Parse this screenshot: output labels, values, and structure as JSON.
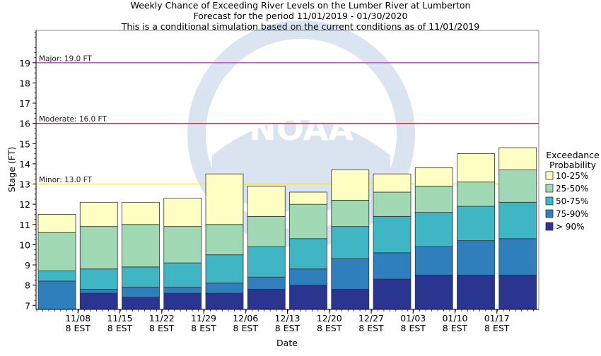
{
  "chart_data": {
    "type": "bar",
    "subtype": "stacked-range",
    "title": [
      "Weekly Chance of Exceeding River Levels on the Lumber River at Lumberton",
      "Forecast for the period 11/01/2019 - 01/30/2020",
      "This is a conditional simulation based on the current conditions as of 11/01/2019"
    ],
    "xlabel": "Date",
    "ylabel": "Stage (FT)",
    "ylim": [
      6.8,
      20.6
    ],
    "yticks": [
      7,
      8,
      9,
      10,
      11,
      12,
      13,
      14,
      15,
      16,
      17,
      18,
      19
    ],
    "grid": false,
    "legend_position": "right",
    "legend_title": [
      "Exceedance",
      "Probability"
    ],
    "weeks": [
      {
        "label": [
          "",
          ""
        ],
        "levels": [
          8.2,
          8.7,
          10.6,
          11.5
        ]
      },
      {
        "label": [
          "11/08",
          "8 EST"
        ],
        "levels": [
          7.6,
          7.8,
          8.8,
          10.9,
          12.1
        ]
      },
      {
        "label": [
          "11/15",
          "8 EST"
        ],
        "levels": [
          7.4,
          7.9,
          8.9,
          11.0,
          12.1
        ]
      },
      {
        "label": [
          "11/22",
          "8 EST"
        ],
        "levels": [
          7.6,
          7.9,
          9.1,
          10.9,
          12.3
        ]
      },
      {
        "label": [
          "11/29",
          "8 EST"
        ],
        "levels": [
          7.6,
          8.1,
          9.5,
          11.0,
          13.5
        ]
      },
      {
        "label": [
          "12/06",
          "8 EST"
        ],
        "levels": [
          7.8,
          8.4,
          9.9,
          11.4,
          12.9
        ]
      },
      {
        "label": [
          "12/13",
          "8 EST"
        ],
        "levels": [
          8.0,
          8.8,
          10.3,
          12.0,
          12.6
        ]
      },
      {
        "label": [
          "12/20",
          "8 EST"
        ],
        "levels": [
          7.8,
          9.3,
          10.9,
          12.2,
          13.7
        ]
      },
      {
        "label": [
          "12/27",
          "8 EST"
        ],
        "levels": [
          8.3,
          9.6,
          11.4,
          12.6,
          13.5
        ]
      },
      {
        "label": [
          "01/03",
          "8 EST"
        ],
        "levels": [
          8.5,
          9.9,
          11.6,
          12.9,
          13.8
        ]
      },
      {
        "label": [
          "01/10",
          "8 EST"
        ],
        "levels": [
          8.5,
          10.2,
          11.9,
          13.1,
          14.5
        ]
      },
      {
        "label": [
          "01/17",
          "8 EST"
        ],
        "levels": [
          8.5,
          10.3,
          12.1,
          13.7,
          14.8
        ]
      }
    ],
    "series": [
      {
        "name": "> 90%",
        "color": "#2a3590"
      },
      {
        "name": "75-90%",
        "color": "#2e7fbb"
      },
      {
        "name": "50-75%",
        "color": "#40b6c5"
      },
      {
        "name": "25-50%",
        "color": "#a1d9b4"
      },
      {
        "name": "10-25%",
        "color": "#ffffc4"
      }
    ],
    "flood_stages": [
      {
        "label": "Major: 19.0 FT",
        "value": 19.0,
        "color": "#c040c0"
      },
      {
        "label": "Moderate: 16.0 FT",
        "value": 16.0,
        "color": "#c8283c"
      },
      {
        "label": "Minor: 13.0 FT",
        "value": 13.0,
        "color": "#e8e070"
      }
    ],
    "watermark": "NOAA"
  }
}
